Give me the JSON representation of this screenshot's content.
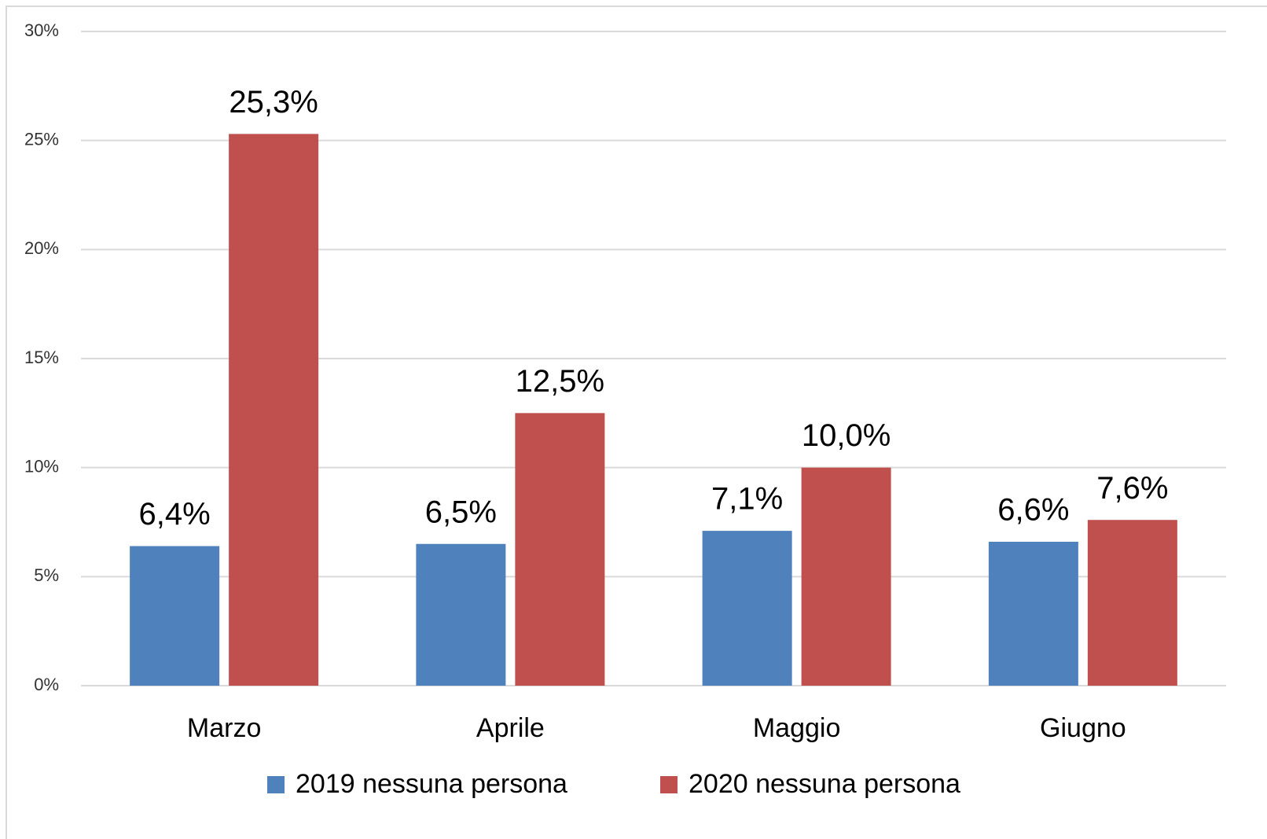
{
  "chart_data": {
    "type": "bar",
    "categories": [
      "Marzo",
      "Aprile",
      "Maggio",
      "Giugno"
    ],
    "series": [
      {
        "name": "2019 nessuna persona",
        "color": "#4f81bd",
        "values": [
          6.4,
          6.5,
          7.1,
          6.6
        ],
        "value_labels": [
          "6,4%",
          "6,5%",
          "7,1%",
          "6,6%"
        ]
      },
      {
        "name": "2020 nessuna persona",
        "color": "#c0504d",
        "values": [
          25.3,
          12.5,
          10.0,
          7.6
        ],
        "value_labels": [
          "25,3%",
          "12,5%",
          "10,0%",
          "7,6%"
        ]
      }
    ],
    "ylim": [
      0,
      30
    ],
    "yticks": [
      {
        "value": 0,
        "label": "0%"
      },
      {
        "value": 5,
        "label": "5%"
      },
      {
        "value": 10,
        "label": "10%"
      },
      {
        "value": 15,
        "label": "15%"
      },
      {
        "value": 20,
        "label": "20%"
      },
      {
        "value": 25,
        "label": "25%"
      },
      {
        "value": 30,
        "label": "30%"
      }
    ],
    "grid": true,
    "legend": "bottom"
  }
}
